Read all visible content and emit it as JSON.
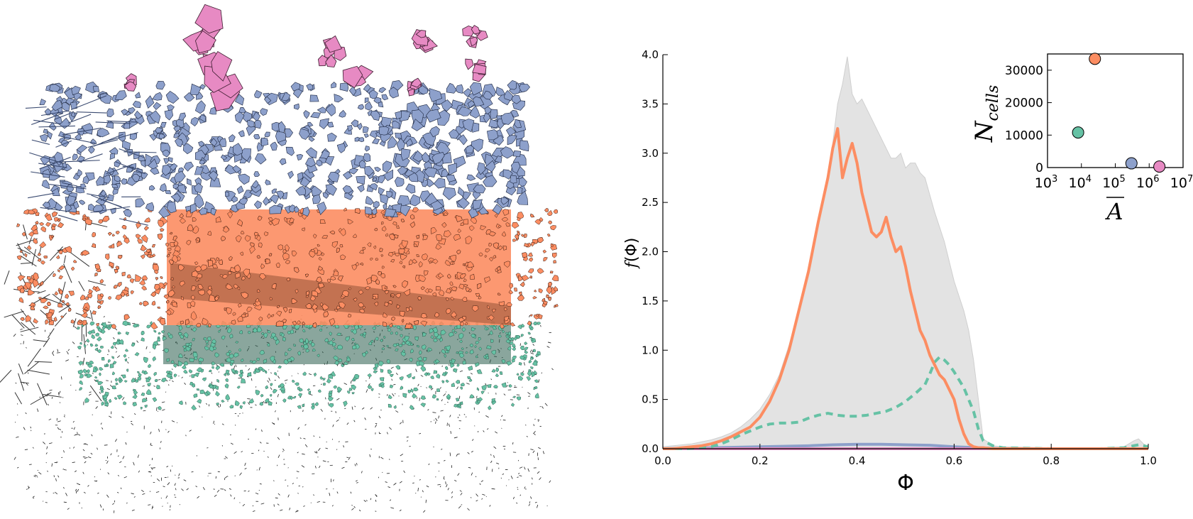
{
  "colors": {
    "pink": "#e78ac3",
    "blue": "#8da0cb",
    "orange": "#fc8d62",
    "green": "#66c2a5",
    "dark_green": "#2a5d4c",
    "outline": "#222222",
    "envelope": "#e3e3e3"
  },
  "map_layers": [
    "pink",
    "blue",
    "orange",
    "green",
    "dark"
  ],
  "chart_data": [
    {
      "type": "line",
      "xlabel": "Φ",
      "ylabel": "f(Φ)",
      "ylabel_prefix": "f",
      "ylabel_symbol": "Φ",
      "xlim": [
        0.0,
        1.0
      ],
      "ylim": [
        0.0,
        4.0
      ],
      "xticks": [
        "0.0",
        "0.2",
        "0.4",
        "0.6",
        "0.8",
        "1.0"
      ],
      "yticks": [
        "0.0",
        "0.5",
        "1.0",
        "1.5",
        "2.0",
        "2.5",
        "3.0",
        "3.5",
        "4.0"
      ],
      "envelope": {
        "color": "#e3e3e3",
        "x": [
          0.0,
          0.02,
          0.04,
          0.06,
          0.08,
          0.1,
          0.12,
          0.14,
          0.16,
          0.18,
          0.2,
          0.22,
          0.24,
          0.26,
          0.28,
          0.3,
          0.32,
          0.34,
          0.35,
          0.36,
          0.37,
          0.38,
          0.39,
          0.4,
          0.41,
          0.42,
          0.43,
          0.44,
          0.45,
          0.46,
          0.47,
          0.48,
          0.49,
          0.5,
          0.51,
          0.52,
          0.53,
          0.54,
          0.56,
          0.58,
          0.6,
          0.62,
          0.63,
          0.64,
          0.65,
          0.66,
          0.68,
          0.7,
          0.8,
          0.9,
          0.95,
          0.97,
          0.98,
          0.99,
          1.0
        ],
        "y": [
          0.02,
          0.03,
          0.04,
          0.05,
          0.07,
          0.09,
          0.12,
          0.16,
          0.22,
          0.3,
          0.4,
          0.55,
          0.75,
          1.05,
          1.4,
          1.8,
          2.3,
          2.8,
          3.1,
          3.5,
          3.7,
          3.98,
          3.6,
          3.5,
          3.55,
          3.45,
          3.35,
          3.25,
          3.15,
          3.05,
          2.95,
          2.95,
          3.0,
          2.85,
          2.9,
          2.9,
          2.8,
          2.75,
          2.4,
          2.1,
          1.7,
          1.4,
          1.2,
          0.9,
          0.5,
          0.1,
          0.03,
          0.02,
          0.01,
          0.01,
          0.02,
          0.08,
          0.1,
          0.05,
          0.02
        ]
      },
      "series": [
        {
          "color": "#fc8d62",
          "style": "solid",
          "x": [
            0.0,
            0.02,
            0.04,
            0.06,
            0.08,
            0.1,
            0.12,
            0.14,
            0.16,
            0.18,
            0.2,
            0.22,
            0.24,
            0.26,
            0.28,
            0.3,
            0.32,
            0.34,
            0.35,
            0.36,
            0.37,
            0.38,
            0.39,
            0.4,
            0.41,
            0.42,
            0.43,
            0.44,
            0.45,
            0.46,
            0.47,
            0.48,
            0.49,
            0.5,
            0.51,
            0.52,
            0.53,
            0.54,
            0.55,
            0.56,
            0.57,
            0.58,
            0.59,
            0.6,
            0.61,
            0.62,
            0.63,
            0.64,
            0.65,
            0.66,
            0.68,
            0.7,
            0.75,
            0.8,
            0.85,
            0.9,
            0.95,
            1.0
          ],
          "y": [
            0.0,
            0.0,
            0.01,
            0.02,
            0.03,
            0.05,
            0.08,
            0.12,
            0.17,
            0.22,
            0.32,
            0.48,
            0.7,
            1.0,
            1.4,
            1.8,
            2.3,
            2.75,
            3.05,
            3.25,
            2.75,
            2.95,
            3.1,
            2.9,
            2.6,
            2.4,
            2.2,
            2.15,
            2.2,
            2.35,
            2.15,
            2.0,
            2.05,
            1.85,
            1.6,
            1.4,
            1.2,
            1.1,
            0.95,
            0.85,
            0.75,
            0.7,
            0.6,
            0.5,
            0.3,
            0.15,
            0.05,
            0.02,
            0.01,
            0.01,
            0.0,
            0.0,
            0.0,
            0.0,
            0.0,
            0.0,
            0.0,
            0.0
          ]
        },
        {
          "color": "#66c2a5",
          "style": "dashed",
          "x": [
            0.0,
            0.05,
            0.1,
            0.12,
            0.14,
            0.16,
            0.18,
            0.2,
            0.22,
            0.24,
            0.26,
            0.28,
            0.3,
            0.32,
            0.34,
            0.36,
            0.38,
            0.4,
            0.42,
            0.44,
            0.46,
            0.48,
            0.5,
            0.52,
            0.54,
            0.55,
            0.56,
            0.57,
            0.58,
            0.59,
            0.6,
            0.61,
            0.62,
            0.63,
            0.64,
            0.65,
            0.66,
            0.68,
            0.7,
            0.8,
            0.9,
            0.95,
            0.98,
            1.0
          ],
          "y": [
            0.0,
            0.0,
            0.02,
            0.05,
            0.09,
            0.14,
            0.18,
            0.22,
            0.25,
            0.26,
            0.26,
            0.27,
            0.31,
            0.34,
            0.36,
            0.34,
            0.33,
            0.33,
            0.34,
            0.36,
            0.38,
            0.42,
            0.48,
            0.56,
            0.65,
            0.76,
            0.88,
            0.93,
            0.9,
            0.85,
            0.78,
            0.7,
            0.62,
            0.5,
            0.38,
            0.2,
            0.08,
            0.03,
            0.01,
            0.0,
            0.0,
            0.01,
            0.04,
            0.02
          ]
        },
        {
          "color": "#8da0cb",
          "style": "solid",
          "x": [
            0.0,
            0.1,
            0.2,
            0.3,
            0.35,
            0.4,
            0.45,
            0.5,
            0.55,
            0.6,
            0.65,
            0.7,
            0.8,
            1.0
          ],
          "y": [
            0.0,
            0.01,
            0.02,
            0.03,
            0.04,
            0.045,
            0.045,
            0.04,
            0.035,
            0.02,
            0.01,
            0.0,
            0.0,
            0.0
          ]
        },
        {
          "color": "#e78ac3",
          "style": "solid",
          "x": [
            0.0,
            0.3,
            0.6,
            1.0
          ],
          "y": [
            0.0,
            0.0,
            0.0,
            0.0
          ]
        }
      ]
    },
    {
      "type": "scatter",
      "xlabel": "A",
      "ylabel_main": "N",
      "ylabel_sub": "cells",
      "xscale": "log",
      "xlim_exp": [
        3,
        7
      ],
      "ylim": [
        0,
        35000
      ],
      "xticks_exp": [
        "3",
        "4",
        "5",
        "6",
        "7"
      ],
      "xtick_base": "10",
      "yticks": [
        "0",
        "10000",
        "20000",
        "30000"
      ],
      "points": [
        {
          "x": 25000,
          "y": 33500,
          "color": "#fc8d62"
        },
        {
          "x": 8000,
          "y": 10800,
          "color": "#66c2a5"
        },
        {
          "x": 300000,
          "y": 1300,
          "color": "#8da0cb"
        },
        {
          "x": 2000000,
          "y": 300,
          "color": "#e78ac3"
        }
      ]
    }
  ]
}
